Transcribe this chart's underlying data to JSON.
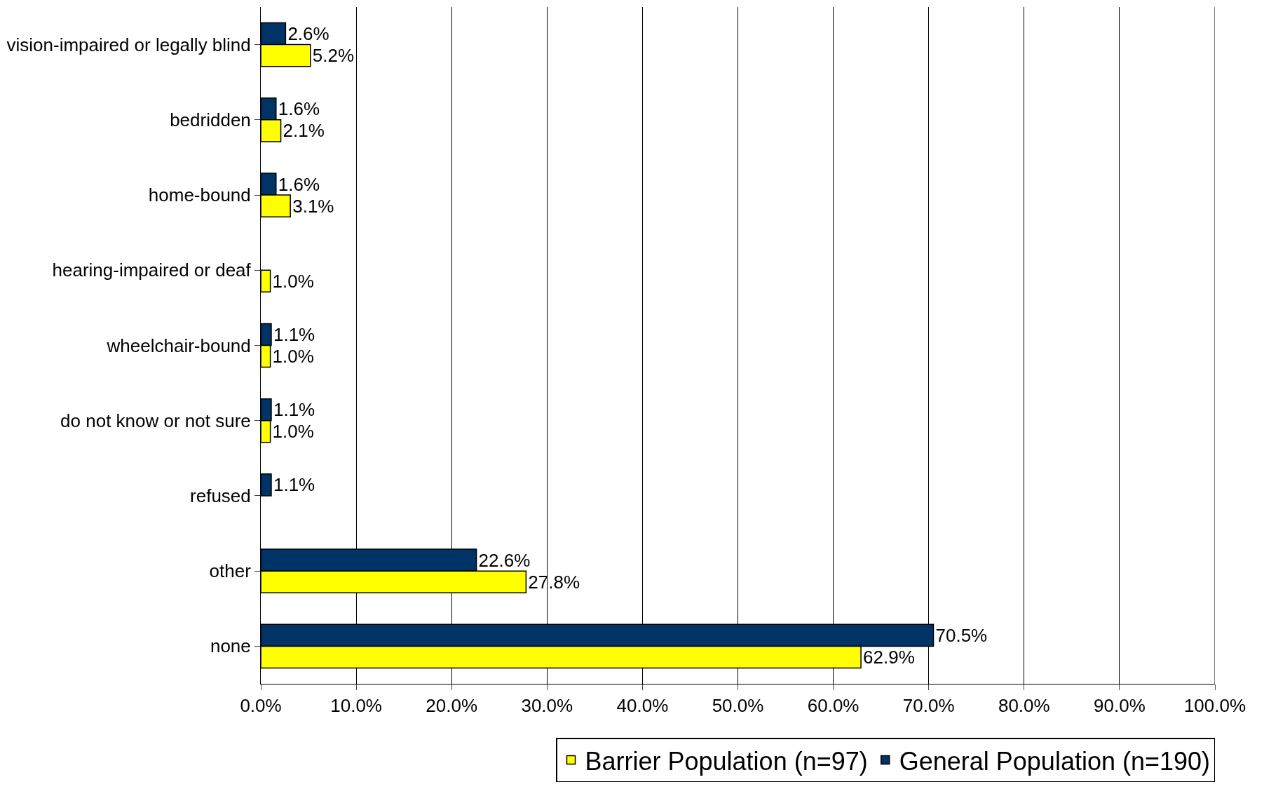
{
  "chart_data": {
    "type": "bar",
    "orientation": "horizontal",
    "categories": [
      "vision-impaired or legally blind",
      "bedridden",
      "home-bound",
      "hearing-impaired or deaf",
      "wheelchair-bound",
      "do not know or not sure",
      "refused",
      "other",
      "none"
    ],
    "series": [
      {
        "name": "Barrier Population (n=97)",
        "color": "#ffff00",
        "values": [
          5.2,
          2.1,
          3.1,
          1.0,
          1.0,
          1.0,
          null,
          27.8,
          62.9
        ],
        "value_labels": [
          "5.2%",
          "2.1%",
          "3.1%",
          "1.0%",
          "1.0%",
          "1.0%",
          null,
          "27.8%",
          "62.9%"
        ]
      },
      {
        "name": "General Population (n=190)",
        "color": "#003366",
        "values": [
          2.6,
          1.6,
          1.6,
          null,
          1.1,
          1.1,
          1.1,
          22.6,
          70.5
        ],
        "value_labels": [
          "2.6%",
          "1.6%",
          "1.6%",
          null,
          "1.1%",
          "1.1%",
          "1.1%",
          "22.6%",
          "70.5%"
        ]
      }
    ],
    "xlim": [
      0,
      100
    ],
    "xticks": [
      {
        "value": 0,
        "label": "0.0%"
      },
      {
        "value": 10,
        "label": "10.0%"
      },
      {
        "value": 20,
        "label": "20.0%"
      },
      {
        "value": 30,
        "label": "30.0%"
      },
      {
        "value": 40,
        "label": "40.0%"
      },
      {
        "value": 50,
        "label": "50.0%"
      },
      {
        "value": 60,
        "label": "60.0%"
      },
      {
        "value": 70,
        "label": "70.0%"
      },
      {
        "value": 80,
        "label": "80.0%"
      },
      {
        "value": 90,
        "label": "90.0%"
      },
      {
        "value": 100,
        "label": "100.0%"
      }
    ],
    "grid": "x",
    "legend": "bottom right"
  }
}
